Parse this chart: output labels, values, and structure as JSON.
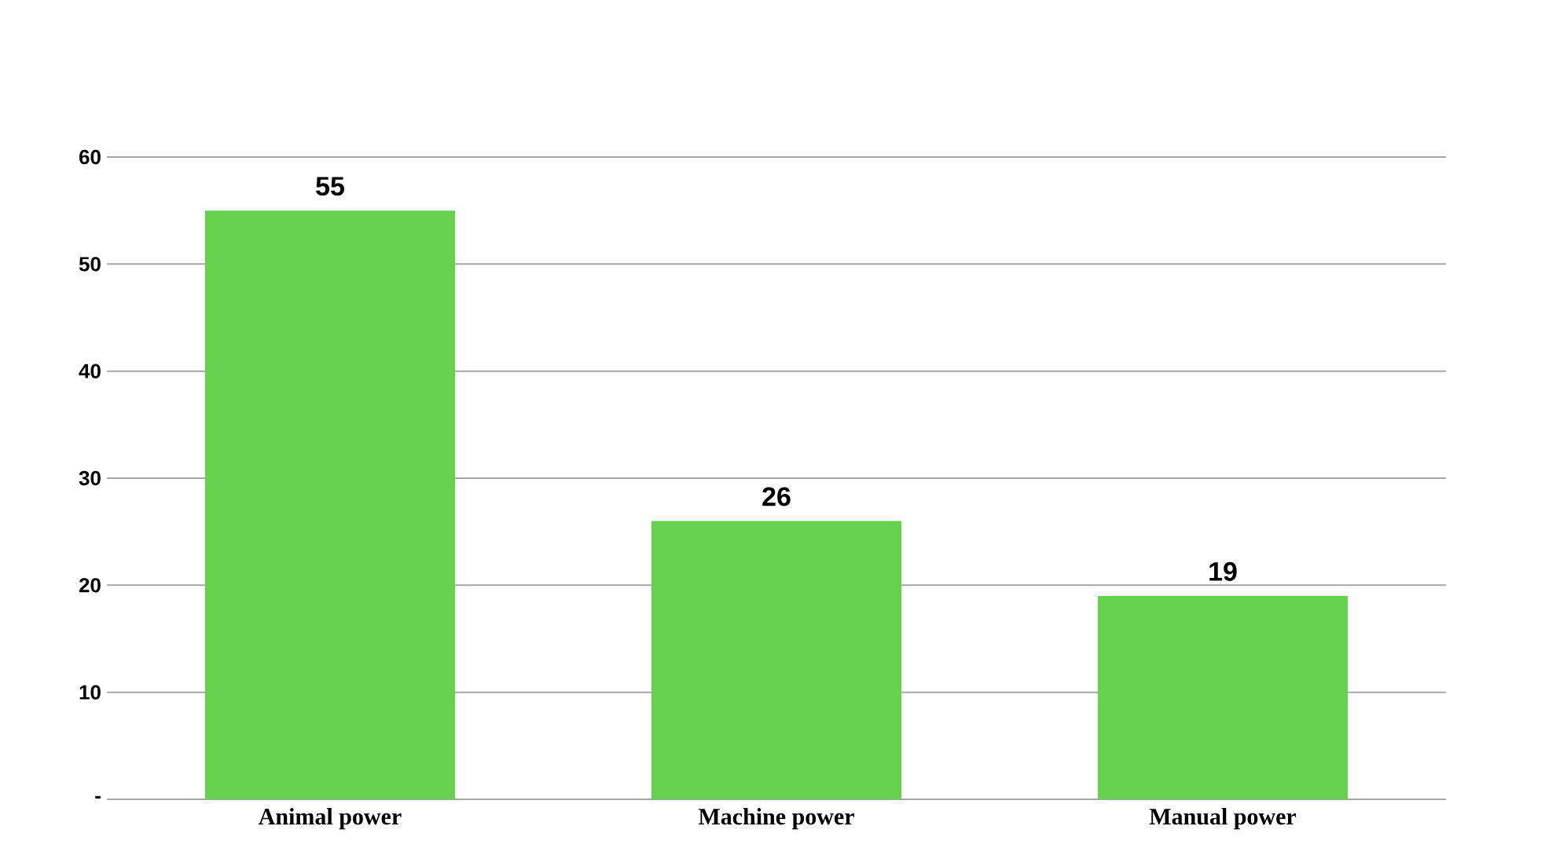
{
  "chart_data": {
    "type": "bar",
    "categories": [
      "Animal power",
      "Machine power",
      "Manual power"
    ],
    "values": [
      55,
      26,
      19
    ],
    "color": "#66d14f",
    "ylim": [
      0,
      60
    ],
    "yticks": [
      {
        "value": 0,
        "label": "-"
      },
      10,
      20,
      30,
      40,
      50,
      60
    ],
    "grid": "y",
    "data_labels": true
  }
}
